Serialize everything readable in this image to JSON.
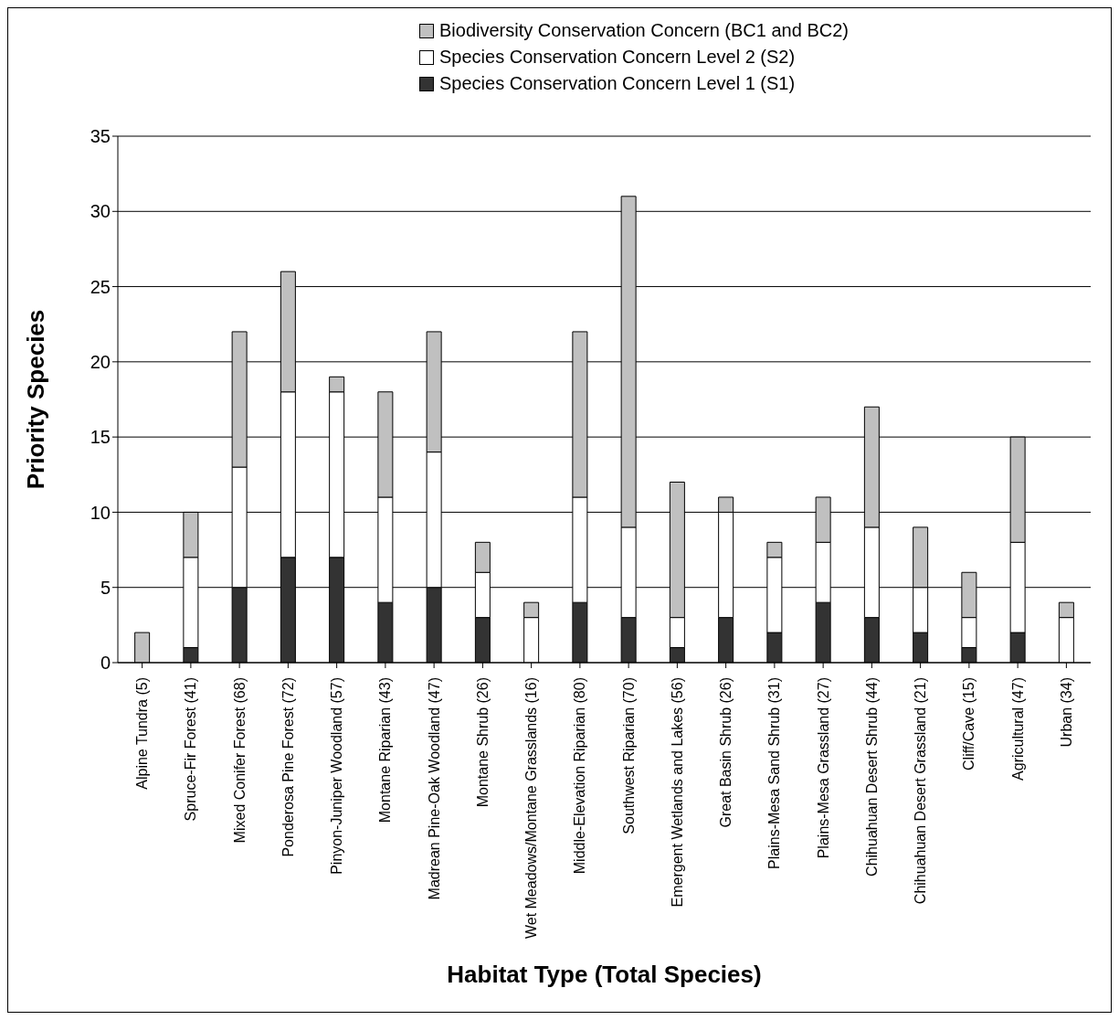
{
  "chart_data": {
    "type": "bar",
    "stacked": true,
    "xlabel": "Habitat Type (Total Species)",
    "ylabel": "Priority Species",
    "categories": [
      "Alpine Tundra (5)",
      "Spruce-Fir Forest (41)",
      "Mixed Conifer Forest (68)",
      "Ponderosa Pine Forest (72)",
      "Pinyon-Juniper Woodland (57)",
      "Montane Riparian (43)",
      "Madrean Pine-Oak Woodland (47)",
      "Montane Shrub (26)",
      "Wet Meadows/Montane Grasslands (16)",
      "Middle-Elevation Riparian (80)",
      "Southwest Riparian (70)",
      "Emergent Wetlands and Lakes (56)",
      "Great Basin Shrub (26)",
      "Plains-Mesa Sand Shrub (31)",
      "Plains-Mesa Grassland (27)",
      "Chihuahuan Desert Shrub (44)",
      "Chihuahuan Desert Grassland (21)",
      "Cliff/Cave (15)",
      "Agricultural (47)",
      "Urban (34)"
    ],
    "series": [
      {
        "name": "Species Conservation Concern Level 1 (S1)",
        "color": "#333333",
        "values": [
          0,
          1,
          5,
          7,
          7,
          4,
          5,
          3,
          0,
          4,
          3,
          1,
          3,
          2,
          4,
          3,
          2,
          1,
          2,
          0
        ]
      },
      {
        "name": "Species Conservation Concern Level 2 (S2)",
        "color": "#ffffff",
        "values": [
          0,
          6,
          8,
          11,
          11,
          7,
          9,
          3,
          3,
          7,
          6,
          2,
          7,
          5,
          4,
          6,
          3,
          2,
          6,
          3
        ]
      },
      {
        "name": "Biodiversity Conservation Concern (BC1 and BC2)",
        "color": "#c0c0c0",
        "values": [
          2,
          3,
          9,
          8,
          1,
          7,
          8,
          2,
          1,
          11,
          22,
          9,
          1,
          1,
          3,
          8,
          4,
          3,
          7,
          1
        ]
      }
    ],
    "ylim": [
      0,
      35
    ],
    "yticks": [
      0,
      5,
      10,
      15,
      20,
      25,
      30,
      35
    ],
    "grid": "y",
    "legend": "top"
  }
}
